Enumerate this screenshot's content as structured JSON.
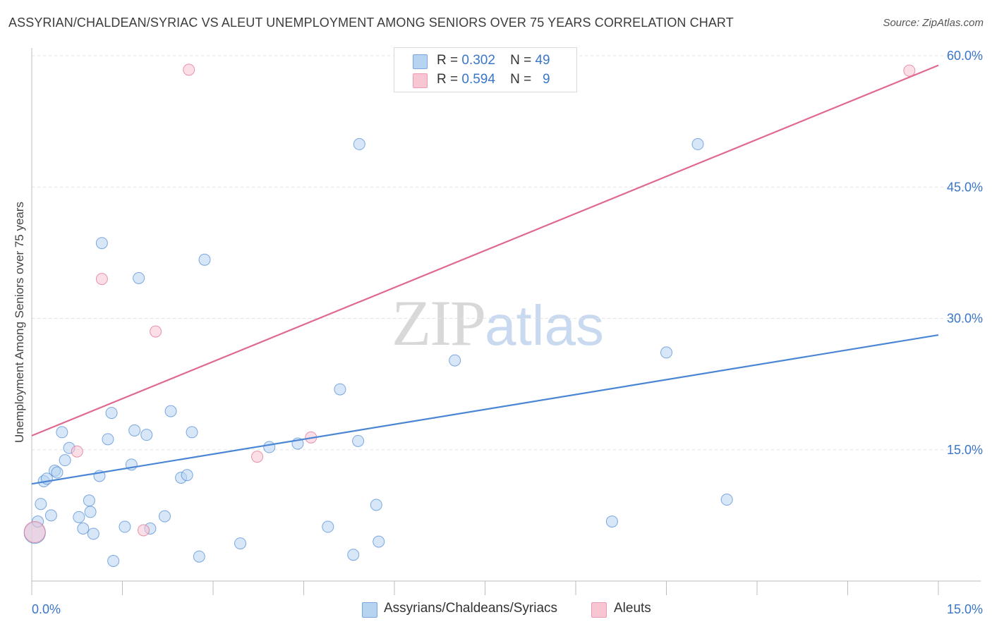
{
  "title": "ASSYRIAN/CHALDEAN/SYRIAC VS ALEUT UNEMPLOYMENT AMONG SENIORS OVER 75 YEARS CORRELATION CHART",
  "source": "Source: ZipAtlas.com",
  "watermark": {
    "zip": "ZIP",
    "atlas": "atlas"
  },
  "legend": {
    "rows": [
      {
        "r_label": "R =",
        "r_value": "0.302",
        "n_label": "N =",
        "n_value": "49",
        "color": "#b7d3f2"
      },
      {
        "r_label": "R =",
        "r_value": "0.594",
        "n_label": "N =",
        "n_value": "9",
        "color": "#f8c5d3"
      }
    ]
  },
  "bottom_legend": {
    "series1": "Assyrians/Chaldeans/Syriacs",
    "series2": "Aleuts"
  },
  "chart_data": {
    "type": "scatter",
    "title": "ASSYRIAN/CHALDEAN/SYRIAC VS ALEUT UNEMPLOYMENT AMONG SENIORS OVER 75 YEARS CORRELATION CHART",
    "xlabel": "",
    "ylabel": "Unemployment Among Seniors over 75 years",
    "xlim": [
      0,
      15
    ],
    "ylim": [
      0,
      60
    ],
    "x_tick_labels": [
      "0.0%",
      "15.0%"
    ],
    "y_ticks": [
      15,
      30,
      45,
      60
    ],
    "y_tick_labels": [
      "15.0%",
      "30.0%",
      "45.0%",
      "60.0%"
    ],
    "grid": true,
    "colors": {
      "series1": "#4a86d4",
      "series1_fill": "#b7d3f2",
      "series2": "#e0698f",
      "series2_fill": "#f8c5d3",
      "axis_text": "#3a76c8"
    },
    "series": [
      {
        "name": "Assyrians/Chaldeans/Syriacs",
        "points": [
          [
            0.05,
            5.5
          ],
          [
            0.1,
            6.8
          ],
          [
            0.15,
            8.8
          ],
          [
            0.2,
            11.4
          ],
          [
            0.25,
            11.7
          ],
          [
            0.32,
            7.5
          ],
          [
            0.38,
            12.6
          ],
          [
            0.42,
            12.4
          ],
          [
            0.5,
            17.0
          ],
          [
            0.55,
            13.8
          ],
          [
            0.62,
            15.2
          ],
          [
            0.78,
            7.3
          ],
          [
            0.85,
            6.0
          ],
          [
            0.95,
            9.2
          ],
          [
            0.97,
            7.9
          ],
          [
            1.02,
            5.4
          ],
          [
            1.12,
            12.0
          ],
          [
            1.16,
            38.6
          ],
          [
            1.26,
            16.2
          ],
          [
            1.32,
            19.2
          ],
          [
            1.35,
            2.3
          ],
          [
            1.54,
            6.2
          ],
          [
            1.65,
            13.3
          ],
          [
            1.7,
            17.2
          ],
          [
            1.77,
            34.6
          ],
          [
            1.9,
            16.7
          ],
          [
            1.96,
            6.0
          ],
          [
            2.2,
            7.4
          ],
          [
            2.3,
            19.4
          ],
          [
            2.47,
            11.8
          ],
          [
            2.57,
            12.1
          ],
          [
            2.65,
            17.0
          ],
          [
            2.77,
            2.8
          ],
          [
            2.86,
            36.7
          ],
          [
            3.45,
            4.3
          ],
          [
            3.93,
            15.3
          ],
          [
            4.4,
            15.7
          ],
          [
            4.9,
            6.2
          ],
          [
            5.1,
            21.9
          ],
          [
            5.32,
            3.0
          ],
          [
            5.4,
            16.0
          ],
          [
            5.42,
            49.9
          ],
          [
            5.7,
            8.7
          ],
          [
            5.74,
            4.5
          ],
          [
            7.0,
            25.2
          ],
          [
            9.6,
            6.8
          ],
          [
            10.5,
            26.1
          ],
          [
            11.02,
            49.9
          ],
          [
            11.5,
            9.3
          ]
        ],
        "trend": [
          [
            0,
            11.1
          ],
          [
            15,
            28.1
          ]
        ]
      },
      {
        "name": "Aleuts",
        "points": [
          [
            0.05,
            5.6
          ],
          [
            0.75,
            14.8
          ],
          [
            1.16,
            34.5
          ],
          [
            1.85,
            5.8
          ],
          [
            2.05,
            28.5
          ],
          [
            2.6,
            58.4
          ],
          [
            3.73,
            14.2
          ],
          [
            4.62,
            16.4
          ],
          [
            14.52,
            58.3
          ]
        ],
        "trend": [
          [
            0,
            16.6
          ],
          [
            15,
            58.9
          ]
        ]
      }
    ]
  }
}
